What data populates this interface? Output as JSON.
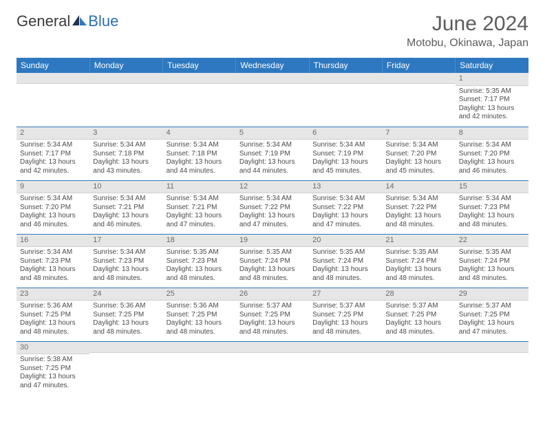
{
  "brand": {
    "part1": "General",
    "part2": "Blue"
  },
  "title": "June 2024",
  "location": "Motobu, Okinawa, Japan",
  "colors": {
    "header_bg": "#2d78c0",
    "header_text": "#ffffff",
    "daynum_bg": "#e6e6e6",
    "row_border": "#2d78c0",
    "body_text": "#4a4a4a",
    "title_text": "#5c5c5c"
  },
  "dayNames": [
    "Sunday",
    "Monday",
    "Tuesday",
    "Wednesday",
    "Thursday",
    "Friday",
    "Saturday"
  ],
  "weeks": [
    [
      {
        "n": "",
        "lines": []
      },
      {
        "n": "",
        "lines": []
      },
      {
        "n": "",
        "lines": []
      },
      {
        "n": "",
        "lines": []
      },
      {
        "n": "",
        "lines": []
      },
      {
        "n": "",
        "lines": []
      },
      {
        "n": "1",
        "lines": [
          "Sunrise: 5:35 AM",
          "Sunset: 7:17 PM",
          "Daylight: 13 hours and 42 minutes."
        ]
      }
    ],
    [
      {
        "n": "2",
        "lines": [
          "Sunrise: 5:34 AM",
          "Sunset: 7:17 PM",
          "Daylight: 13 hours and 42 minutes."
        ]
      },
      {
        "n": "3",
        "lines": [
          "Sunrise: 5:34 AM",
          "Sunset: 7:18 PM",
          "Daylight: 13 hours and 43 minutes."
        ]
      },
      {
        "n": "4",
        "lines": [
          "Sunrise: 5:34 AM",
          "Sunset: 7:18 PM",
          "Daylight: 13 hours and 44 minutes."
        ]
      },
      {
        "n": "5",
        "lines": [
          "Sunrise: 5:34 AM",
          "Sunset: 7:19 PM",
          "Daylight: 13 hours and 44 minutes."
        ]
      },
      {
        "n": "6",
        "lines": [
          "Sunrise: 5:34 AM",
          "Sunset: 7:19 PM",
          "Daylight: 13 hours and 45 minutes."
        ]
      },
      {
        "n": "7",
        "lines": [
          "Sunrise: 5:34 AM",
          "Sunset: 7:20 PM",
          "Daylight: 13 hours and 45 minutes."
        ]
      },
      {
        "n": "8",
        "lines": [
          "Sunrise: 5:34 AM",
          "Sunset: 7:20 PM",
          "Daylight: 13 hours and 46 minutes."
        ]
      }
    ],
    [
      {
        "n": "9",
        "lines": [
          "Sunrise: 5:34 AM",
          "Sunset: 7:20 PM",
          "Daylight: 13 hours and 46 minutes."
        ]
      },
      {
        "n": "10",
        "lines": [
          "Sunrise: 5:34 AM",
          "Sunset: 7:21 PM",
          "Daylight: 13 hours and 46 minutes."
        ]
      },
      {
        "n": "11",
        "lines": [
          "Sunrise: 5:34 AM",
          "Sunset: 7:21 PM",
          "Daylight: 13 hours and 47 minutes."
        ]
      },
      {
        "n": "12",
        "lines": [
          "Sunrise: 5:34 AM",
          "Sunset: 7:22 PM",
          "Daylight: 13 hours and 47 minutes."
        ]
      },
      {
        "n": "13",
        "lines": [
          "Sunrise: 5:34 AM",
          "Sunset: 7:22 PM",
          "Daylight: 13 hours and 47 minutes."
        ]
      },
      {
        "n": "14",
        "lines": [
          "Sunrise: 5:34 AM",
          "Sunset: 7:22 PM",
          "Daylight: 13 hours and 48 minutes."
        ]
      },
      {
        "n": "15",
        "lines": [
          "Sunrise: 5:34 AM",
          "Sunset: 7:23 PM",
          "Daylight: 13 hours and 48 minutes."
        ]
      }
    ],
    [
      {
        "n": "16",
        "lines": [
          "Sunrise: 5:34 AM",
          "Sunset: 7:23 PM",
          "Daylight: 13 hours and 48 minutes."
        ]
      },
      {
        "n": "17",
        "lines": [
          "Sunrise: 5:34 AM",
          "Sunset: 7:23 PM",
          "Daylight: 13 hours and 48 minutes."
        ]
      },
      {
        "n": "18",
        "lines": [
          "Sunrise: 5:35 AM",
          "Sunset: 7:23 PM",
          "Daylight: 13 hours and 48 minutes."
        ]
      },
      {
        "n": "19",
        "lines": [
          "Sunrise: 5:35 AM",
          "Sunset: 7:24 PM",
          "Daylight: 13 hours and 48 minutes."
        ]
      },
      {
        "n": "20",
        "lines": [
          "Sunrise: 5:35 AM",
          "Sunset: 7:24 PM",
          "Daylight: 13 hours and 48 minutes."
        ]
      },
      {
        "n": "21",
        "lines": [
          "Sunrise: 5:35 AM",
          "Sunset: 7:24 PM",
          "Daylight: 13 hours and 48 minutes."
        ]
      },
      {
        "n": "22",
        "lines": [
          "Sunrise: 5:35 AM",
          "Sunset: 7:24 PM",
          "Daylight: 13 hours and 48 minutes."
        ]
      }
    ],
    [
      {
        "n": "23",
        "lines": [
          "Sunrise: 5:36 AM",
          "Sunset: 7:25 PM",
          "Daylight: 13 hours and 48 minutes."
        ]
      },
      {
        "n": "24",
        "lines": [
          "Sunrise: 5:36 AM",
          "Sunset: 7:25 PM",
          "Daylight: 13 hours and 48 minutes."
        ]
      },
      {
        "n": "25",
        "lines": [
          "Sunrise: 5:36 AM",
          "Sunset: 7:25 PM",
          "Daylight: 13 hours and 48 minutes."
        ]
      },
      {
        "n": "26",
        "lines": [
          "Sunrise: 5:37 AM",
          "Sunset: 7:25 PM",
          "Daylight: 13 hours and 48 minutes."
        ]
      },
      {
        "n": "27",
        "lines": [
          "Sunrise: 5:37 AM",
          "Sunset: 7:25 PM",
          "Daylight: 13 hours and 48 minutes."
        ]
      },
      {
        "n": "28",
        "lines": [
          "Sunrise: 5:37 AM",
          "Sunset: 7:25 PM",
          "Daylight: 13 hours and 48 minutes."
        ]
      },
      {
        "n": "29",
        "lines": [
          "Sunrise: 5:37 AM",
          "Sunset: 7:25 PM",
          "Daylight: 13 hours and 47 minutes."
        ]
      }
    ],
    [
      {
        "n": "30",
        "lines": [
          "Sunrise: 5:38 AM",
          "Sunset: 7:25 PM",
          "Daylight: 13 hours and 47 minutes."
        ]
      },
      {
        "n": "",
        "lines": []
      },
      {
        "n": "",
        "lines": []
      },
      {
        "n": "",
        "lines": []
      },
      {
        "n": "",
        "lines": []
      },
      {
        "n": "",
        "lines": []
      },
      {
        "n": "",
        "lines": []
      }
    ]
  ]
}
